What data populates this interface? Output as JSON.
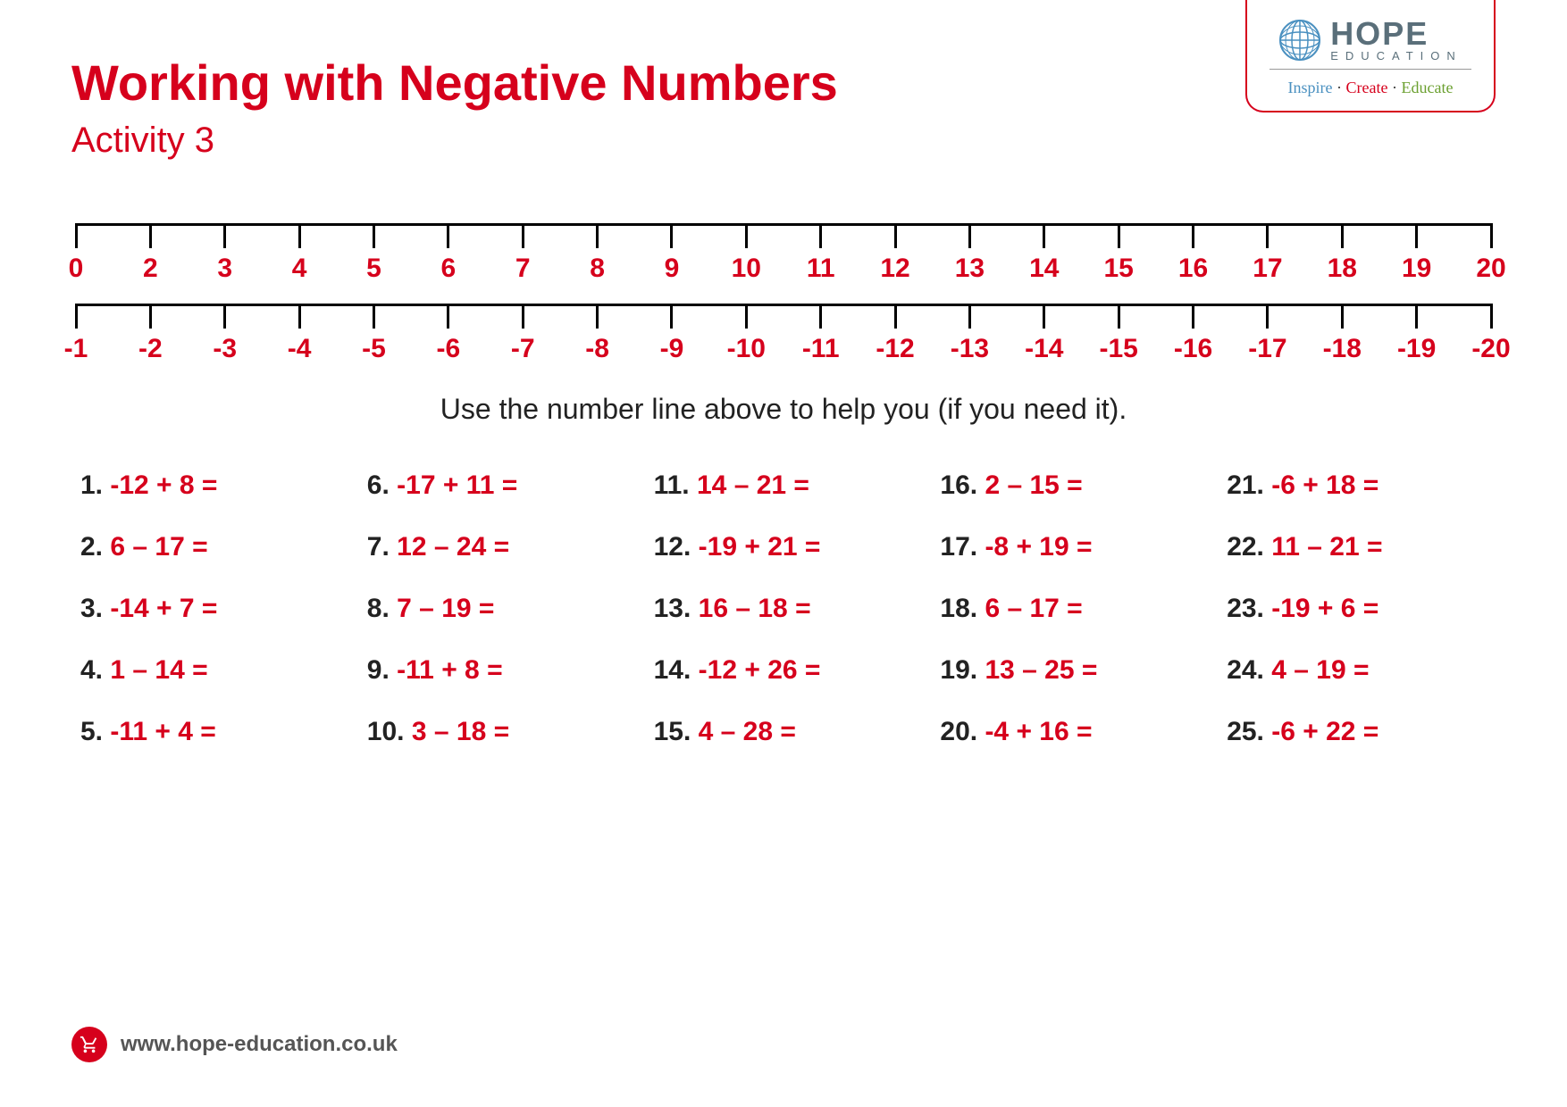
{
  "header": {
    "title": "Working with Negative Numbers",
    "subtitle": "Activity 3"
  },
  "logo": {
    "brand_main": "HOPE",
    "brand_sub": "EDUCATION",
    "tagline_inspire": "Inspire",
    "tagline_create": "Create",
    "tagline_educate": "Educate",
    "globe_color": "#4a90c0",
    "brand_color": "#5a6f7a"
  },
  "colors": {
    "accent": "#d6001c",
    "text": "#222222",
    "muted": "#555555",
    "axis": "#000000",
    "background": "#ffffff"
  },
  "numberline_top": {
    "values": [
      "0",
      "2",
      "3",
      "4",
      "5",
      "6",
      "7",
      "8",
      "9",
      "10",
      "11",
      "12",
      "13",
      "14",
      "15",
      "16",
      "17",
      "18",
      "19",
      "20"
    ],
    "tick_count": 20,
    "label_color": "#d6001c",
    "label_fontsize": 30,
    "axis_color": "#000000",
    "tick_height": 28
  },
  "numberline_bottom": {
    "values": [
      "-1",
      "-2",
      "-3",
      "-4",
      "-5",
      "-6",
      "-7",
      "-8",
      "-9",
      "-10",
      "-11",
      "-12",
      "-13",
      "-14",
      "-15",
      "-16",
      "-17",
      "-18",
      "-19",
      "-20"
    ],
    "tick_count": 20,
    "label_color": "#d6001c",
    "label_fontsize": 30,
    "axis_color": "#000000",
    "tick_height": 28
  },
  "instruction": "Use the number line above to help you (if you need it).",
  "problems": [
    {
      "n": "1.",
      "e": "-12 + 8 ="
    },
    {
      "n": "2.",
      "e": "6 – 17 ="
    },
    {
      "n": "3.",
      "e": "-14 + 7 ="
    },
    {
      "n": "4.",
      "e": "1 – 14 ="
    },
    {
      "n": "5.",
      "e": "-11 + 4 ="
    },
    {
      "n": "6.",
      "e": "-17 + 11 ="
    },
    {
      "n": "7.",
      "e": "12 – 24 ="
    },
    {
      "n": "8.",
      "e": "7 – 19 ="
    },
    {
      "n": "9.",
      "e": "-11 + 8 ="
    },
    {
      "n": "10.",
      "e": "3 – 18 ="
    },
    {
      "n": "11.",
      "e": "14 – 21 ="
    },
    {
      "n": "12.",
      "e": "-19 + 21 ="
    },
    {
      "n": "13.",
      "e": "16 – 18 ="
    },
    {
      "n": "14.",
      "e": "-12 + 26 ="
    },
    {
      "n": "15.",
      "e": "4 – 28 ="
    },
    {
      "n": "16.",
      "e": "2 – 15 ="
    },
    {
      "n": "17.",
      "e": "-8 + 19 ="
    },
    {
      "n": "18.",
      "e": "6 – 17 ="
    },
    {
      "n": "19.",
      "e": "13 – 25 ="
    },
    {
      "n": "20.",
      "e": "-4 + 16 ="
    },
    {
      "n": "21.",
      "e": "-6 + 18 ="
    },
    {
      "n": "22.",
      "e": "11 – 21 ="
    },
    {
      "n": "23.",
      "e": "-19 + 6 ="
    },
    {
      "n": "24.",
      "e": "4 – 19 ="
    },
    {
      "n": "25.",
      "e": "-6 + 22 ="
    }
  ],
  "footer": {
    "url": "www.hope-education.co.uk"
  }
}
